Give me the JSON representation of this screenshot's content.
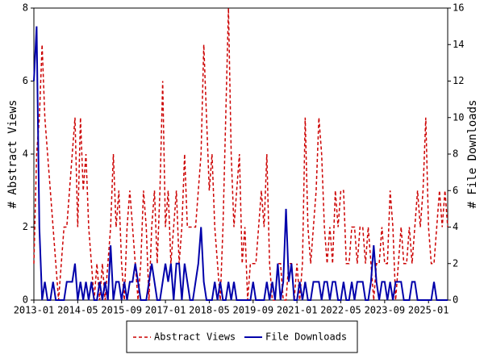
{
  "chart_data": {
    "type": "line",
    "ylabel": "# Abstract Views",
    "y2label": "# File Downloads",
    "x": [
      "2013-01",
      "2013-02",
      "2013-03",
      "2013-04",
      "2013-05",
      "2013-06",
      "2013-07",
      "2013-08",
      "2013-09",
      "2013-10",
      "2013-11",
      "2013-12",
      "2014-01",
      "2014-02",
      "2014-03",
      "2014-04",
      "2014-05",
      "2014-06",
      "2014-07",
      "2014-08",
      "2014-09",
      "2014-10",
      "2014-11",
      "2014-12",
      "2015-01",
      "2015-02",
      "2015-03",
      "2015-04",
      "2015-05",
      "2015-06",
      "2015-07",
      "2015-08",
      "2015-09",
      "2015-10",
      "2015-11",
      "2015-12",
      "2016-01",
      "2016-02",
      "2016-03",
      "2016-04",
      "2016-05",
      "2016-06",
      "2016-07",
      "2016-08",
      "2016-09",
      "2016-10",
      "2016-11",
      "2016-12",
      "2017-01",
      "2017-02",
      "2017-03",
      "2017-04",
      "2017-05",
      "2017-06",
      "2017-07",
      "2017-08",
      "2017-09",
      "2017-10",
      "2017-11",
      "2017-12",
      "2018-01",
      "2018-02",
      "2018-03",
      "2018-04",
      "2018-05",
      "2018-06",
      "2018-07",
      "2018-08",
      "2018-09",
      "2018-10",
      "2018-11",
      "2018-12",
      "2019-01",
      "2019-02",
      "2019-03",
      "2019-04",
      "2019-05",
      "2019-06",
      "2019-07",
      "2019-08",
      "2019-09",
      "2019-10",
      "2019-11",
      "2019-12",
      "2020-01",
      "2020-02",
      "2020-03",
      "2020-04",
      "2020-05",
      "2020-06",
      "2020-07",
      "2020-08",
      "2020-09",
      "2020-10",
      "2020-11",
      "2020-12",
      "2021-01",
      "2021-02",
      "2021-03",
      "2021-04",
      "2021-05",
      "2021-06",
      "2021-07",
      "2021-08",
      "2021-09",
      "2021-10",
      "2021-11",
      "2021-12",
      "2022-01",
      "2022-02",
      "2022-03",
      "2022-04",
      "2022-05",
      "2022-06",
      "2022-07",
      "2022-08",
      "2022-09",
      "2022-10",
      "2022-11",
      "2022-12",
      "2023-01",
      "2023-02",
      "2023-03",
      "2023-04",
      "2023-05",
      "2023-06",
      "2023-07",
      "2023-08",
      "2023-09",
      "2023-10",
      "2023-11",
      "2023-12",
      "2024-01",
      "2024-02",
      "2024-03",
      "2024-04",
      "2024-05",
      "2024-06",
      "2024-07",
      "2024-08",
      "2024-09",
      "2024-10",
      "2024-11",
      "2024-12",
      "2025-01",
      "2025-02",
      "2025-03",
      "2025-04",
      "2025-05",
      "2025-06",
      "2025-07",
      "2025-08"
    ],
    "xlim": [
      "2013-01",
      "2025-08"
    ],
    "xticks": [
      "2013-01",
      "2014-05",
      "2015-09",
      "2017-01",
      "2018-05",
      "2019-09",
      "2021-01",
      "2022-05",
      "2023-09",
      "2025-01"
    ],
    "ylim": [
      0,
      8
    ],
    "yticks": [
      0,
      2,
      4,
      6,
      8
    ],
    "y2lim": [
      0,
      16
    ],
    "y2ticks": [
      0,
      2,
      4,
      6,
      8,
      10,
      12,
      14,
      16
    ],
    "series": [
      {
        "name": "Abstract Views",
        "color": "#cc0000",
        "dashed": true,
        "values": [
          1,
          4,
          5,
          7,
          5,
          4,
          3,
          2,
          1,
          0,
          1,
          2,
          2,
          3,
          4,
          5,
          2,
          5,
          3,
          4,
          2,
          1,
          0,
          1,
          0,
          1,
          0,
          1,
          2,
          4,
          2,
          3,
          1,
          0,
          2,
          3,
          2,
          1,
          0,
          1,
          3,
          2,
          0,
          2,
          3,
          1,
          3,
          6,
          2,
          3,
          1,
          2,
          3,
          1,
          2,
          4,
          2,
          2,
          2,
          2,
          3,
          4,
          7,
          5,
          3,
          4,
          2,
          1,
          0,
          2,
          5,
          8,
          4,
          2,
          3,
          4,
          1,
          2,
          0,
          1,
          1,
          1,
          2,
          3,
          2,
          4,
          1,
          0,
          0,
          1,
          1,
          0,
          0,
          1,
          1,
          0,
          1,
          0,
          1,
          5,
          2,
          1,
          2,
          3,
          5,
          4,
          2,
          1,
          2,
          1,
          3,
          2,
          3,
          3,
          1,
          1,
          2,
          2,
          1,
          2,
          2,
          1,
          2,
          1,
          0,
          1,
          1,
          2,
          1,
          1,
          3,
          2,
          0,
          1,
          2,
          1,
          1,
          2,
          1,
          2,
          3,
          2,
          3,
          5,
          2,
          1,
          1,
          2,
          3,
          2,
          3,
          2
        ]
      },
      {
        "name": "File Downloads",
        "color": "#0000aa",
        "axis": "y2",
        "values": [
          12,
          15,
          4,
          0,
          1,
          0,
          0,
          1,
          0,
          0,
          0,
          0,
          1,
          1,
          1,
          2,
          0,
          1,
          0,
          1,
          0,
          1,
          0,
          0,
          1,
          0,
          1,
          0,
          3,
          0,
          1,
          1,
          0,
          1,
          0,
          1,
          1,
          2,
          1,
          0,
          0,
          0,
          1,
          2,
          1,
          0,
          0,
          1,
          2,
          1,
          2,
          0,
          2,
          2,
          0,
          2,
          1,
          0,
          0,
          1,
          2,
          4,
          1,
          0,
          0,
          0,
          1,
          0,
          1,
          0,
          0,
          1,
          0,
          1,
          0,
          0,
          0,
          0,
          0,
          0,
          1,
          0,
          0,
          0,
          0,
          1,
          0,
          1,
          0,
          2,
          0,
          1,
          5,
          1,
          2,
          0,
          0,
          1,
          0,
          1,
          0,
          0,
          1,
          1,
          1,
          0,
          1,
          1,
          0,
          1,
          1,
          0,
          0,
          1,
          0,
          0,
          1,
          0,
          1,
          1,
          1,
          0,
          0,
          1,
          3,
          1,
          0,
          1,
          1,
          0,
          1,
          0,
          1,
          1,
          1,
          0,
          0,
          0,
          1,
          1,
          0,
          0,
          0,
          0,
          0,
          0,
          1,
          0,
          0,
          0,
          0,
          0
        ]
      }
    ]
  }
}
